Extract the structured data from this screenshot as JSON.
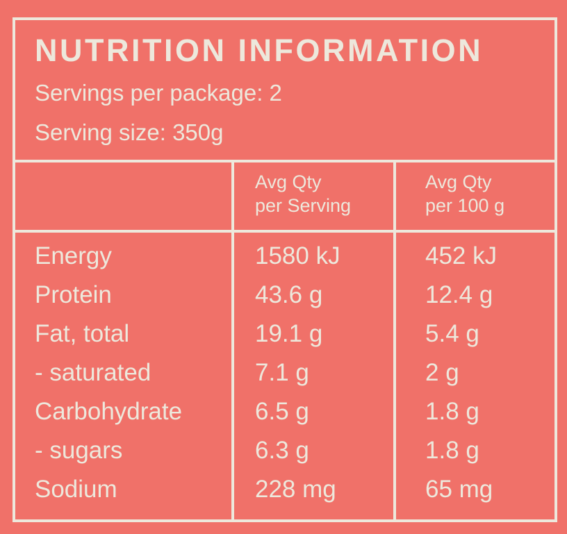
{
  "title": "NUTRITION INFORMATION",
  "servings_per_package": "Servings per package: 2",
  "serving_size": "Serving size: 350g",
  "columns": [
    {
      "line1": "Avg Qty",
      "line2": "per Serving"
    },
    {
      "line1": "Avg Qty",
      "line2": "per 100 g"
    }
  ],
  "rows": [
    {
      "label": "Energy",
      "per_serving": "1580 kJ",
      "per_100g": "452 kJ"
    },
    {
      "label": "Protein",
      "per_serving": "43.6 g",
      "per_100g": "12.4 g"
    },
    {
      "label": "Fat, total",
      "per_serving": "19.1 g",
      "per_100g": "5.4 g"
    },
    {
      "label": "- saturated",
      "per_serving": "7.1 g",
      "per_100g": "2 g"
    },
    {
      "label": "Carbohydrate",
      "per_serving": "6.5 g",
      "per_100g": "1.8 g"
    },
    {
      "label": "- sugars",
      "per_serving": "6.3 g",
      "per_100g": "1.8 g"
    },
    {
      "label": "Sodium",
      "per_serving": "228 mg",
      "per_100g": "65 mg"
    }
  ],
  "colors": {
    "background": "#f07169",
    "foreground": "#ede8dc"
  }
}
